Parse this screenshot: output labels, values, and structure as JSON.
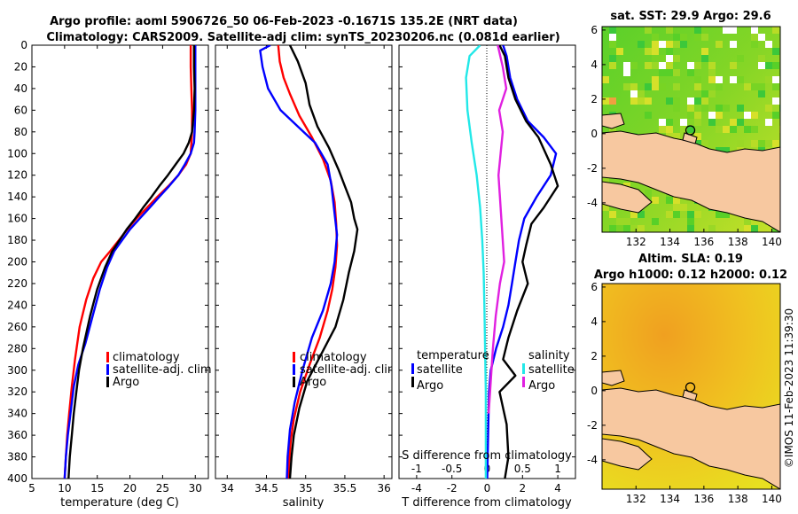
{
  "header": {
    "title_line1": "Argo profile: aoml 5906726_50 06-Feb-2023 -0.1671S 135.2E (NRT data)",
    "title_line2": "Climatology: CARS2009. Satellite-adj clim: synTS_20230206.nc (0.081d earlier)"
  },
  "colors": {
    "climatology": "#ff0000",
    "satellite": "#0000ff",
    "argo": "#000000",
    "satellite_salinity": "#22e8e8",
    "argo_salinity": "#e020e0",
    "land": "#f7c8a0"
  },
  "depth_ticks": [
    "0",
    "20",
    "40",
    "60",
    "80",
    "100",
    "120",
    "140",
    "160",
    "180",
    "200",
    "220",
    "240",
    "260",
    "280",
    "300",
    "320",
    "340",
    "360",
    "380",
    "400"
  ],
  "chart_data": [
    {
      "type": "line",
      "id": "temperature-profile",
      "xlabel": "temperature (deg C)",
      "ylabel": "depth",
      "xlim": [
        5,
        32
      ],
      "ylim": [
        400,
        0
      ],
      "xticks": [
        "5",
        "10",
        "15",
        "20",
        "25",
        "30"
      ],
      "legend": [
        "climatology",
        "satellite-adj. clim",
        "Argo"
      ],
      "series": [
        {
          "name": "climatology",
          "color": "#ff0000",
          "x": [
            29.3,
            29.3,
            29.4,
            29.5,
            29.5,
            29.3,
            28.6,
            27.4,
            25.9,
            24.2,
            22.6,
            21.0,
            19.6,
            18.3,
            17.0,
            15.6,
            14.4,
            13.3,
            12.3,
            11.6,
            11.1,
            10.7,
            10.4,
            10.2,
            10.0
          ],
          "y": [
            0,
            20,
            40,
            60,
            80,
            100,
            110,
            120,
            130,
            140,
            150,
            160,
            170,
            180,
            190,
            200,
            215,
            235,
            260,
            290,
            315,
            340,
            360,
            380,
            400
          ]
        },
        {
          "name": "satellite-adj. clim",
          "color": "#0000ff",
          "x": [
            30.0,
            30.0,
            30.0,
            30.0,
            29.9,
            29.8,
            29.3,
            28.4,
            27.4,
            26.0,
            24.5,
            23.0,
            21.5,
            20.0,
            18.8,
            17.6,
            16.5,
            15.4,
            14.3,
            13.2,
            12.1,
            11.4,
            10.9,
            10.5,
            10.2,
            10.0
          ],
          "y": [
            0,
            20,
            40,
            60,
            80,
            90,
            100,
            110,
            120,
            130,
            140,
            150,
            160,
            170,
            180,
            190,
            205,
            225,
            250,
            275,
            295,
            315,
            340,
            360,
            380,
            400
          ]
        },
        {
          "name": "Argo",
          "color": "#000000",
          "x": [
            29.8,
            29.8,
            29.9,
            29.8,
            29.5,
            29.0,
            28.2,
            27.0,
            25.8,
            24.5,
            23.3,
            22.0,
            20.8,
            19.5,
            18.4,
            17.3,
            16.2,
            15.0,
            13.9,
            12.8,
            12.2,
            11.8,
            11.4,
            11.1,
            10.8,
            10.6
          ],
          "y": [
            0,
            20,
            40,
            60,
            80,
            90,
            100,
            110,
            120,
            130,
            140,
            150,
            160,
            170,
            180,
            190,
            205,
            225,
            250,
            280,
            300,
            320,
            340,
            360,
            380,
            400
          ]
        }
      ]
    },
    {
      "type": "line",
      "id": "salinity-profile",
      "xlabel": "salinity",
      "xlim": [
        33.85,
        36.1
      ],
      "ylim": [
        400,
        0
      ],
      "xticks": [
        "34",
        "34.5",
        "35",
        "35.5",
        "36"
      ],
      "legend": [
        "climatology",
        "satellite-adj. clim",
        "Argo"
      ],
      "series": [
        {
          "name": "climatology",
          "color": "#ff0000",
          "x": [
            34.65,
            34.67,
            34.72,
            34.8,
            34.92,
            35.08,
            35.22,
            35.32,
            35.37,
            35.39,
            35.4,
            35.38,
            35.34,
            35.28,
            35.18,
            35.05,
            34.93,
            34.85,
            34.81,
            34.79,
            34.78
          ],
          "y": [
            0,
            15,
            30,
            45,
            65,
            85,
            105,
            125,
            145,
            165,
            185,
            205,
            225,
            245,
            270,
            295,
            320,
            345,
            365,
            385,
            400
          ]
        },
        {
          "name": "satellite-adj. clim",
          "color": "#0000ff",
          "x": [
            34.55,
            34.42,
            34.45,
            34.52,
            34.68,
            34.9,
            35.12,
            35.28,
            35.33,
            35.36,
            35.4,
            35.37,
            35.32,
            35.22,
            35.08,
            34.96,
            34.86,
            34.8,
            34.77,
            34.76
          ],
          "y": [
            0,
            5,
            20,
            40,
            60,
            75,
            90,
            110,
            130,
            150,
            175,
            200,
            220,
            245,
            270,
            300,
            330,
            355,
            380,
            400
          ]
        },
        {
          "name": "Argo",
          "color": "#000000",
          "x": [
            34.8,
            34.9,
            35.0,
            35.05,
            35.15,
            35.3,
            35.42,
            35.5,
            35.58,
            35.62,
            35.66,
            35.62,
            35.55,
            35.48,
            35.38,
            35.2,
            35.02,
            34.92,
            34.85,
            34.82,
            34.8
          ],
          "y": [
            0,
            15,
            35,
            55,
            75,
            95,
            115,
            130,
            145,
            160,
            170,
            190,
            210,
            235,
            260,
            285,
            310,
            335,
            360,
            380,
            400
          ]
        }
      ]
    },
    {
      "type": "line",
      "id": "difference-profile",
      "xlabel": "T difference from climatology",
      "xlabel_top": "S difference from climatology",
      "xlim": [
        -5,
        5
      ],
      "ylim": [
        400,
        0
      ],
      "xticks": [
        "-4",
        "-2",
        "0",
        "2",
        "4"
      ],
      "xticks_top": [
        "-1",
        "-0.5",
        "0",
        "0.5",
        "1"
      ],
      "legend_temperature_title": "temperature",
      "legend_salinity_title": "salinity",
      "legend_temperature": [
        "satellite",
        "Argo"
      ],
      "legend_salinity": [
        "satellite",
        "Argo"
      ],
      "series": [
        {
          "name": "temperature satellite",
          "color": "#0000ff",
          "x": [
            0.9,
            1.1,
            1.3,
            1.7,
            2.3,
            3.2,
            3.9,
            3.6,
            2.8,
            2.1,
            1.8,
            1.6,
            1.4,
            1.2,
            0.9,
            0.5,
            0.2,
            0.1,
            0.0
          ],
          "y": [
            0,
            10,
            30,
            50,
            70,
            85,
            100,
            120,
            140,
            160,
            180,
            200,
            220,
            240,
            260,
            280,
            300,
            320,
            400
          ]
        },
        {
          "name": "temperature Argo",
          "color": "#000000",
          "x": [
            0.7,
            1.0,
            1.2,
            1.6,
            2.2,
            2.9,
            3.6,
            4.0,
            3.2,
            2.5,
            2.2,
            2.0,
            2.3,
            1.7,
            1.2,
            0.9,
            1.6,
            0.7,
            1.1,
            1.2,
            1.0
          ],
          "y": [
            0,
            10,
            30,
            50,
            70,
            85,
            110,
            130,
            150,
            165,
            185,
            200,
            220,
            245,
            270,
            290,
            305,
            320,
            350,
            380,
            400
          ]
        },
        {
          "name": "salinity satellite",
          "color": "#22e8e8",
          "x": [
            -0.1,
            -0.25,
            -0.3,
            -0.28,
            -0.22,
            -0.15,
            -0.1,
            -0.07,
            -0.05,
            -0.04,
            -0.03,
            -0.02,
            -0.02,
            -0.02
          ],
          "y": [
            0,
            10,
            30,
            60,
            90,
            120,
            150,
            180,
            210,
            240,
            280,
            320,
            360,
            400
          ]
        },
        {
          "name": "salinity Argo",
          "color": "#e020e0",
          "x": [
            0.15,
            0.22,
            0.27,
            0.17,
            0.22,
            0.19,
            0.16,
            0.18,
            0.2,
            0.22,
            0.24,
            0.18,
            0.12,
            0.08,
            0.05,
            0.02
          ],
          "y": [
            0,
            20,
            40,
            60,
            80,
            100,
            120,
            140,
            160,
            180,
            200,
            220,
            250,
            280,
            310,
            340
          ]
        }
      ]
    },
    {
      "type": "heatmap",
      "id": "sst-map",
      "title": "sat. SST: 29.9 Argo: 29.6",
      "xlim": [
        130,
        140.5
      ],
      "ylim": [
        -5.7,
        6.2
      ],
      "xticks": [
        "132",
        "134",
        "136",
        "138",
        "140"
      ],
      "yticks": [
        "6",
        "4",
        "2",
        "0",
        "-2",
        "-4"
      ],
      "float_position": {
        "lon": 135.2,
        "lat": 0.2
      }
    },
    {
      "type": "heatmap",
      "id": "sla-map",
      "title_line1": "Altim. SLA: 0.19",
      "title_line2": "Argo h1000: 0.12 h2000: 0.12",
      "xlim": [
        130,
        140.5
      ],
      "ylim": [
        -5.7,
        6.2
      ],
      "xticks": [
        "132",
        "134",
        "136",
        "138",
        "140"
      ],
      "yticks": [
        "6",
        "4",
        "2",
        "0",
        "-2",
        "-4"
      ],
      "float_position": {
        "lon": 135.2,
        "lat": 0.2
      }
    }
  ],
  "footer": {
    "copyright": "©IMOS 11-Feb-2023 11:39:30"
  }
}
